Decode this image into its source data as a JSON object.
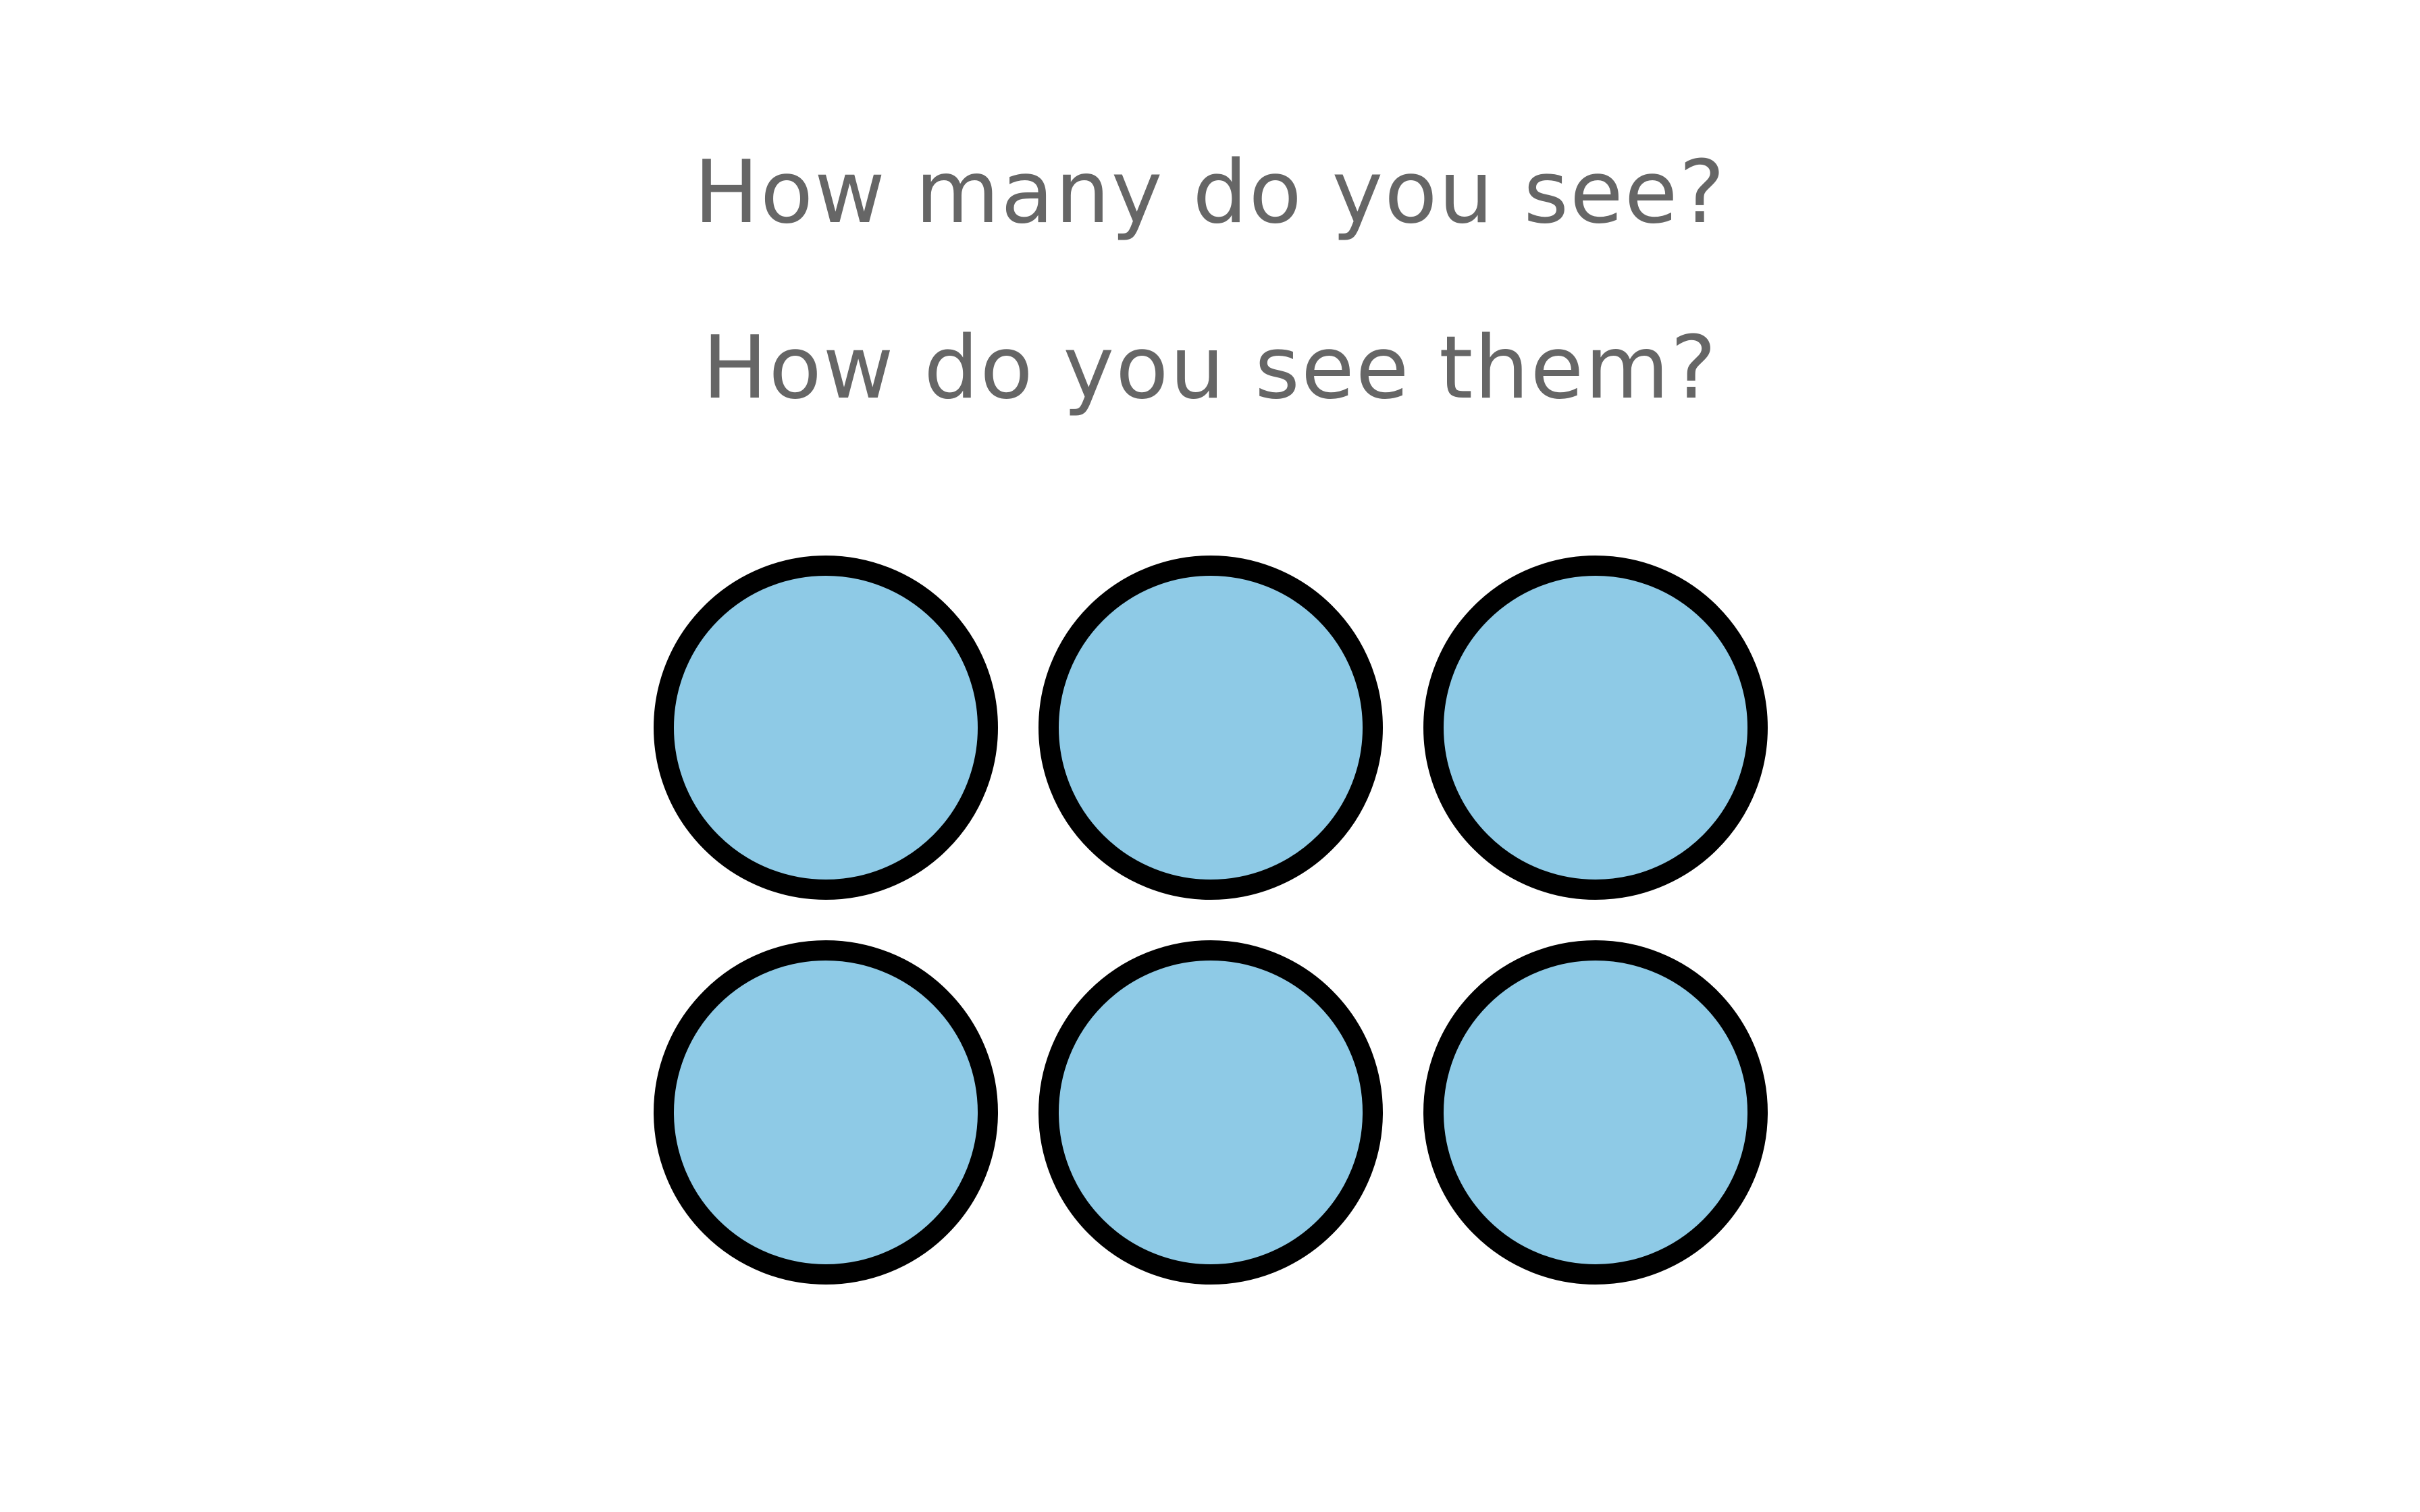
{
  "questions": {
    "line1": "How many do you see?",
    "line2": "How do you see them?"
  },
  "dots": {
    "rows": 2,
    "columns": 3,
    "count": 6,
    "fill_color": "#8ecae6",
    "stroke_color": "#000000"
  }
}
